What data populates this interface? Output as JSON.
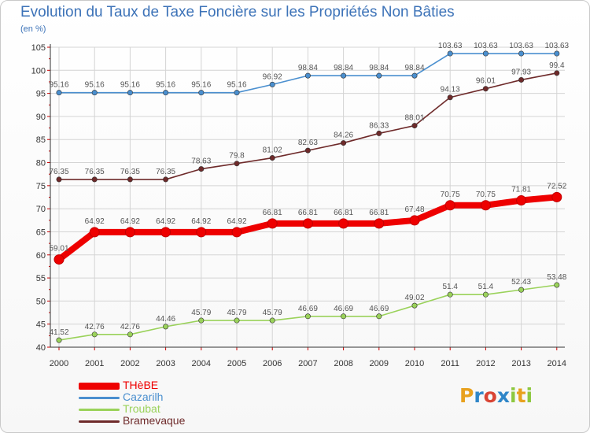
{
  "header": {
    "title": "Evolution du Taux de Taxe Foncière sur les Propriétés Non Bâties",
    "unit": "(en %)"
  },
  "logo": {
    "letters": [
      "P",
      "r",
      "o",
      "x",
      "i",
      "t",
      "i"
    ],
    "colors": [
      "#e8a11e",
      "#2f86c8",
      "#d94434",
      "#2f86c8",
      "#8dc83f",
      "#e8a11e",
      "#8dc83f"
    ]
  },
  "chart_data": {
    "type": "line",
    "title": "Evolution du Taux de Taxe Foncière sur les Propriétés Non Bâties",
    "ylabel": "(en %)",
    "xlabel": "",
    "x": [
      "2000",
      "2001",
      "2002",
      "2003",
      "2004",
      "2005",
      "2006",
      "2007",
      "2008",
      "2009",
      "2010",
      "2011",
      "2012",
      "2013",
      "2014"
    ],
    "ylim": [
      40,
      105
    ],
    "yticks": [
      40,
      45,
      50,
      55,
      60,
      65,
      70,
      75,
      80,
      85,
      90,
      95,
      100,
      105
    ],
    "grid": true,
    "legend_position": "bottom-left",
    "series": [
      {
        "name": "THèBE",
        "color": "#ee0000",
        "highlight": true,
        "values": [
          59.01,
          64.92,
          64.92,
          64.92,
          64.92,
          64.92,
          66.81,
          66.81,
          66.81,
          66.81,
          67.48,
          70.75,
          70.75,
          71.81,
          72.52
        ],
        "labels": [
          "59.01",
          "64.92",
          "64.92",
          "64.92",
          "64.92",
          "64.92",
          "66.81",
          "66.81",
          "66.81",
          "66.81",
          "67.48",
          "70.75",
          "70.75",
          "71.81",
          "72.52"
        ]
      },
      {
        "name": "Cazarilh",
        "color": "#4a8fcf",
        "highlight": false,
        "values": [
          95.16,
          95.16,
          95.16,
          95.16,
          95.16,
          95.16,
          96.92,
          98.84,
          98.84,
          98.84,
          98.84,
          103.63,
          103.63,
          103.63,
          103.63
        ],
        "labels": [
          "95.16",
          "95.16",
          "95.16",
          "95.16",
          "95.16",
          "95.16",
          "96.92",
          "98.84",
          "98.84",
          "98.84",
          "98.84",
          "103.63",
          "103.63",
          "103.63",
          "103.63"
        ]
      },
      {
        "name": "Troubat",
        "color": "#9ad25a",
        "highlight": false,
        "values": [
          41.52,
          42.76,
          42.76,
          44.46,
          45.79,
          45.79,
          45.79,
          46.69,
          46.69,
          46.69,
          49.02,
          51.4,
          51.4,
          52.43,
          53.48
        ],
        "labels": [
          "41.52",
          "42.76",
          "42.76",
          "44.46",
          "45.79",
          "45.79",
          "45.79",
          "46.69",
          "46.69",
          "46.69",
          "49.02",
          "51.4",
          "51.4",
          "52.43",
          "53.48"
        ]
      },
      {
        "name": "Bramevaque",
        "color": "#6e2a2a",
        "highlight": false,
        "values": [
          76.35,
          76.35,
          76.35,
          76.35,
          78.63,
          79.8,
          81.02,
          82.63,
          84.26,
          86.33,
          88.01,
          94.13,
          96.01,
          97.93,
          99.4
        ],
        "labels": [
          "76.35",
          "76.35",
          "76.35",
          "76.35",
          "78.63",
          "79.8",
          "81.02",
          "82.63",
          "84.26",
          "86.33",
          "88.01",
          "94.13",
          "96.01",
          "97.93",
          "99.4"
        ]
      }
    ]
  }
}
